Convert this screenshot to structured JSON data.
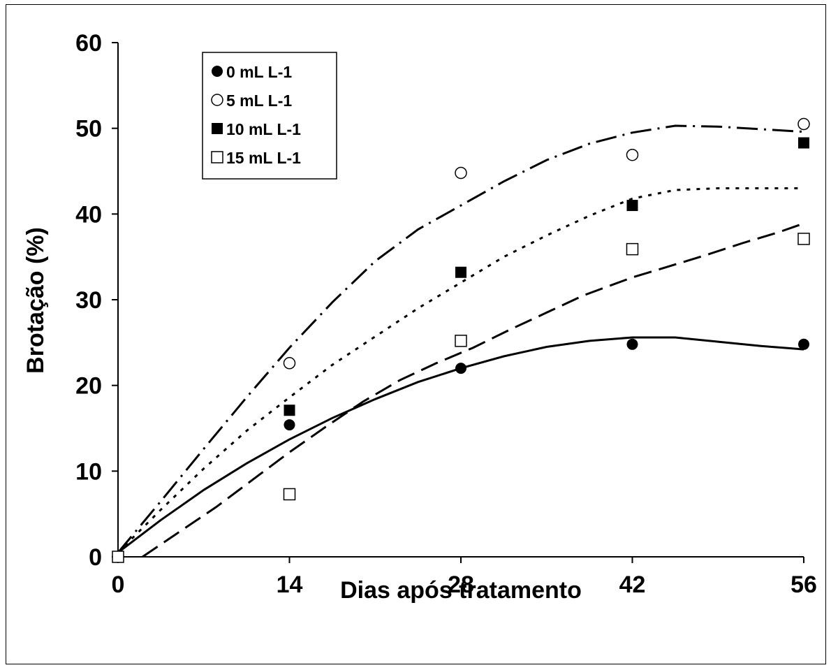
{
  "chart_data": {
    "type": "scatter",
    "xlabel": "Dias após tratamento",
    "ylabel": "Brotação (%)",
    "xlim": [
      0,
      56
    ],
    "ylim": [
      0,
      60
    ],
    "xticks": [
      0,
      14,
      28,
      42,
      56
    ],
    "yticks": [
      0,
      10,
      20,
      30,
      40,
      50,
      60
    ],
    "grid": false,
    "legend_position": "top-left",
    "series": [
      {
        "name": "0 mL L-1",
        "marker": "filled-circle",
        "x": [
          0,
          14,
          28,
          42,
          56
        ],
        "y": [
          0,
          15.4,
          22.0,
          24.8,
          24.8
        ],
        "fit_line": "solid",
        "fit_x": [
          0,
          3.5,
          7,
          10.5,
          14,
          17.5,
          21,
          24.5,
          28,
          31.5,
          35,
          38.5,
          42,
          45.5,
          49,
          52.5,
          56
        ],
        "fit_y": [
          0.5,
          4.3,
          7.8,
          10.9,
          13.7,
          16.2,
          18.4,
          20.4,
          22.0,
          23.4,
          24.5,
          25.2,
          25.6,
          25.6,
          25.1,
          24.6,
          24.2
        ]
      },
      {
        "name": "5 mL L-1",
        "marker": "open-circle",
        "x": [
          0,
          14,
          28,
          42,
          56
        ],
        "y": [
          0,
          22.6,
          44.8,
          46.9,
          50.5
        ],
        "fit_line": "dash-dot",
        "fit_x": [
          0,
          3.5,
          7,
          10.5,
          14,
          17.5,
          21,
          24.5,
          28,
          31.5,
          35,
          38.5,
          42,
          45.5,
          49,
          52.5,
          56
        ],
        "fit_y": [
          0.5,
          6.5,
          12.6,
          18.6,
          24.4,
          29.7,
          34.5,
          38.2,
          41.0,
          43.8,
          46.3,
          48.2,
          49.5,
          50.3,
          50.2,
          49.9,
          49.6
        ]
      },
      {
        "name": "10 mL L-1",
        "marker": "filled-square",
        "x": [
          0,
          14,
          28,
          42,
          56
        ],
        "y": [
          0,
          17.1,
          33.2,
          41.0,
          48.3
        ],
        "fit_line": "dotted",
        "fit_x": [
          0,
          3.5,
          7,
          10.5,
          14,
          17.5,
          21,
          24.5,
          28,
          31.5,
          35,
          38.5,
          42,
          45.5,
          49,
          52.5,
          56
        ],
        "fit_y": [
          0.5,
          5.5,
          10.3,
          14.7,
          18.6,
          22.4,
          25.7,
          29.0,
          32.0,
          35.0,
          37.5,
          39.8,
          41.8,
          42.8,
          43.0,
          43.0,
          43.0
        ]
      },
      {
        "name": "15 mL L-1",
        "marker": "open-square",
        "x": [
          0,
          14,
          28,
          42,
          56
        ],
        "y": [
          0,
          7.3,
          25.2,
          35.9,
          37.1
        ],
        "fit_line": "dashed",
        "fit_x": [
          2,
          5,
          8,
          11,
          14,
          17,
          20,
          23,
          26,
          29,
          32,
          35,
          38,
          42,
          45,
          48,
          51,
          54,
          56
        ],
        "fit_y": [
          0,
          2.9,
          5.8,
          9.0,
          12.2,
          15.2,
          18.1,
          20.6,
          22.6,
          24.4,
          26.5,
          28.5,
          30.5,
          32.6,
          33.9,
          35.2,
          36.6,
          37.9,
          38.9
        ]
      }
    ]
  }
}
